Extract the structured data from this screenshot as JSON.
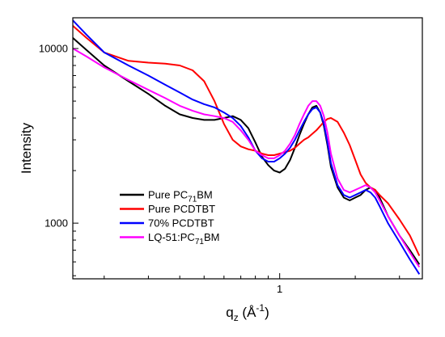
{
  "chart_data": {
    "type": "line",
    "title": "",
    "xlabel": "q_z (Å^-1)",
    "ylabel": "Intensity",
    "xscale": "log",
    "yscale": "log",
    "xlim": [
      0.15,
      3.7
    ],
    "ylim": [
      480,
      15000
    ],
    "x_ticks": [
      {
        "value": 1,
        "label": "1"
      }
    ],
    "y_ticks": [
      {
        "value": 1000,
        "label": "1000"
      },
      {
        "value": 10000,
        "label": "10000"
      }
    ],
    "legend_position": "lower-left",
    "grid": false,
    "series": [
      {
        "name": "Pure PC71BM",
        "legend": {
          "main": "Pure PC",
          "sub": "71",
          "suffix": "BM"
        },
        "color": "#000000",
        "x": [
          0.15,
          0.17,
          0.2,
          0.25,
          0.3,
          0.35,
          0.4,
          0.45,
          0.5,
          0.55,
          0.6,
          0.65,
          0.7,
          0.75,
          0.8,
          0.85,
          0.9,
          0.95,
          1.0,
          1.05,
          1.1,
          1.15,
          1.2,
          1.25,
          1.3,
          1.35,
          1.4,
          1.45,
          1.5,
          1.55,
          1.6,
          1.7,
          1.8,
          1.9,
          2.0,
          2.1,
          2.2,
          2.3,
          2.4,
          2.5,
          2.7,
          3.0,
          3.3,
          3.6
        ],
        "y": [
          11500,
          9800,
          8000,
          6500,
          5500,
          4700,
          4200,
          4000,
          3900,
          3900,
          4000,
          4100,
          3900,
          3500,
          2900,
          2400,
          2150,
          2000,
          1950,
          2050,
          2300,
          2700,
          3200,
          3700,
          4200,
          4600,
          4700,
          4300,
          3600,
          2800,
          2100,
          1600,
          1400,
          1350,
          1400,
          1450,
          1550,
          1600,
          1550,
          1400,
          1100,
          850,
          700,
          580
        ]
      },
      {
        "name": "Pure PCDTBT",
        "legend": {
          "main": "Pure PCDTBT",
          "sub": "",
          "suffix": ""
        },
        "color": "#ff0000",
        "x": [
          0.15,
          0.17,
          0.2,
          0.25,
          0.3,
          0.35,
          0.4,
          0.45,
          0.5,
          0.55,
          0.6,
          0.65,
          0.7,
          0.75,
          0.8,
          0.85,
          0.9,
          0.95,
          1.0,
          1.05,
          1.1,
          1.15,
          1.2,
          1.25,
          1.3,
          1.35,
          1.4,
          1.45,
          1.5,
          1.55,
          1.6,
          1.7,
          1.8,
          1.9,
          2.0,
          2.1,
          2.2,
          2.3,
          2.4,
          2.5,
          2.7,
          3.0,
          3.3,
          3.6
        ],
        "y": [
          13500,
          11500,
          9500,
          8500,
          8300,
          8200,
          8000,
          7500,
          6500,
          5000,
          3700,
          3000,
          2750,
          2650,
          2600,
          2500,
          2450,
          2450,
          2500,
          2550,
          2600,
          2700,
          2850,
          3000,
          3100,
          3250,
          3400,
          3600,
          3800,
          3950,
          4000,
          3800,
          3300,
          2800,
          2300,
          1900,
          1700,
          1600,
          1550,
          1450,
          1300,
          1050,
          850,
          650
        ]
      },
      {
        "name": "70% PCDTBT",
        "legend": {
          "main": "70% PCDTBT",
          "sub": "",
          "suffix": ""
        },
        "color": "#0000ff",
        "x": [
          0.15,
          0.17,
          0.2,
          0.25,
          0.3,
          0.35,
          0.4,
          0.45,
          0.5,
          0.55,
          0.6,
          0.65,
          0.7,
          0.75,
          0.8,
          0.85,
          0.9,
          0.95,
          1.0,
          1.05,
          1.1,
          1.15,
          1.2,
          1.25,
          1.3,
          1.35,
          1.4,
          1.45,
          1.5,
          1.55,
          1.6,
          1.7,
          1.8,
          1.9,
          2.0,
          2.1,
          2.2,
          2.3,
          2.4,
          2.5,
          2.7,
          3.0,
          3.3,
          3.6
        ],
        "y": [
          14500,
          12000,
          9500,
          8000,
          7000,
          6200,
          5600,
          5100,
          4800,
          4600,
          4300,
          4000,
          3600,
          3100,
          2600,
          2350,
          2250,
          2250,
          2350,
          2500,
          2700,
          3000,
          3400,
          3800,
          4200,
          4500,
          4600,
          4300,
          3700,
          2900,
          2200,
          1650,
          1450,
          1400,
          1450,
          1500,
          1550,
          1500,
          1400,
          1250,
          1000,
          780,
          620,
          510
        ]
      },
      {
        "name": "LQ-51:PC71BM",
        "legend": {
          "main": "LQ-51:PC",
          "sub": "71",
          "suffix": "BM"
        },
        "color": "#ff00ff",
        "x": [
          0.15,
          0.17,
          0.2,
          0.25,
          0.3,
          0.35,
          0.4,
          0.45,
          0.5,
          0.55,
          0.6,
          0.65,
          0.7,
          0.75,
          0.8,
          0.85,
          0.9,
          0.95,
          1.0,
          1.05,
          1.1,
          1.15,
          1.2,
          1.25,
          1.3,
          1.35,
          1.4,
          1.45,
          1.5,
          1.55,
          1.6,
          1.7,
          1.8,
          1.9,
          2.0,
          2.1,
          2.2,
          2.3,
          2.4,
          2.5,
          2.7,
          3.0,
          3.3,
          3.6
        ],
        "y": [
          10000,
          9000,
          7800,
          6600,
          5800,
          5200,
          4700,
          4400,
          4200,
          4100,
          4000,
          3800,
          3400,
          3000,
          2600,
          2450,
          2350,
          2350,
          2450,
          2600,
          2850,
          3200,
          3700,
          4200,
          4700,
          5000,
          5000,
          4700,
          4100,
          3300,
          2500,
          1800,
          1550,
          1500,
          1550,
          1600,
          1650,
          1600,
          1500,
          1350,
          1100,
          850,
          680,
          560
        ]
      }
    ]
  }
}
